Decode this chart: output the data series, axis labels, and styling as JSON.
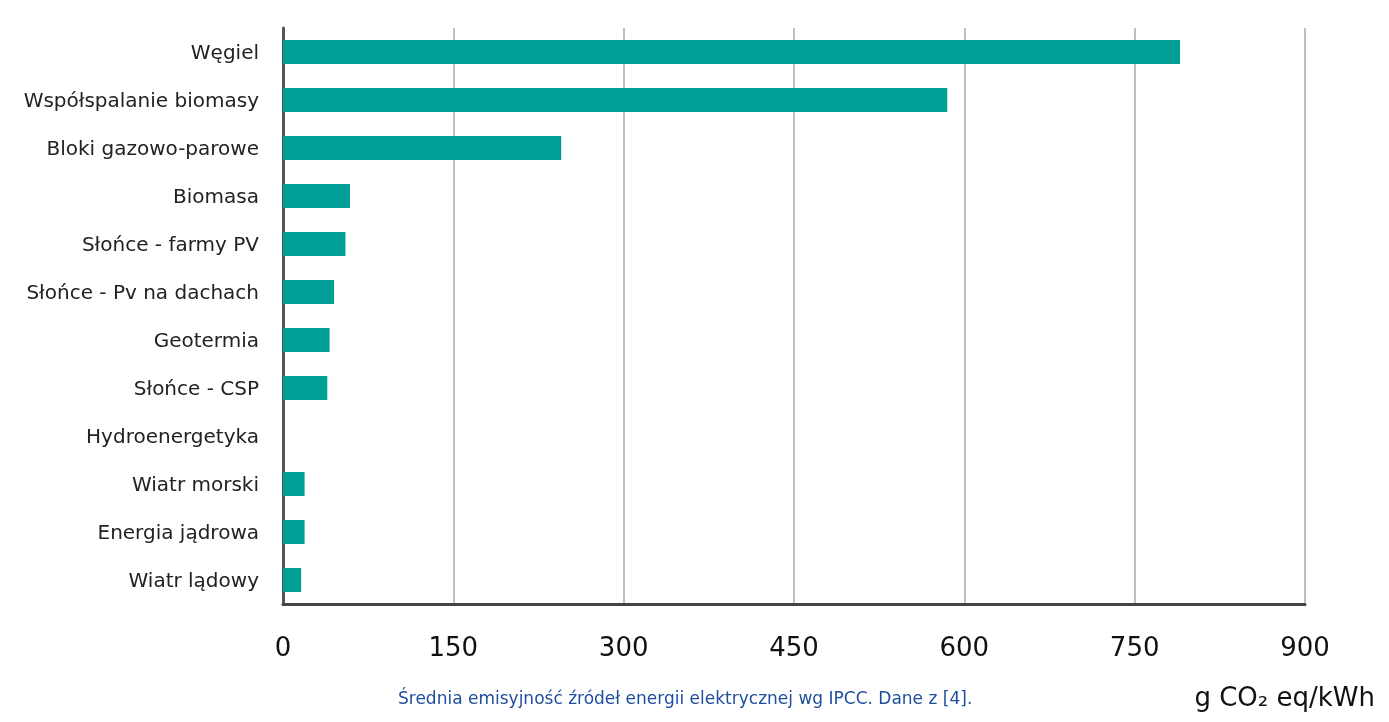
{
  "chart_data": {
    "type": "bar",
    "orientation": "horizontal",
    "categories": [
      "Węgiel",
      "Współspalanie biomasy",
      "Bloki gazowo-parowe",
      "Biomasa",
      "Słońce - farmy PV",
      "Słońce - Pv na dachach",
      "Geotermia",
      "Słońce - CSP",
      "Hydroenergetyka",
      "Wiatr morski",
      "Energia jądrowa",
      "Wiatr lądowy"
    ],
    "values": [
      790,
      585,
      245,
      59,
      55,
      45,
      41,
      39,
      null,
      19,
      19,
      16
    ],
    "color": "#009e94",
    "xlim": [
      0,
      900
    ],
    "xticks": [
      0,
      150,
      300,
      450,
      600,
      750,
      900
    ],
    "xlabel": "g CO₂ eq/kWh",
    "annotations": [
      "Średnia emisyjność źródeł energii elektrycznej wg IPCC. Dane z [4]."
    ],
    "grid": "x"
  }
}
